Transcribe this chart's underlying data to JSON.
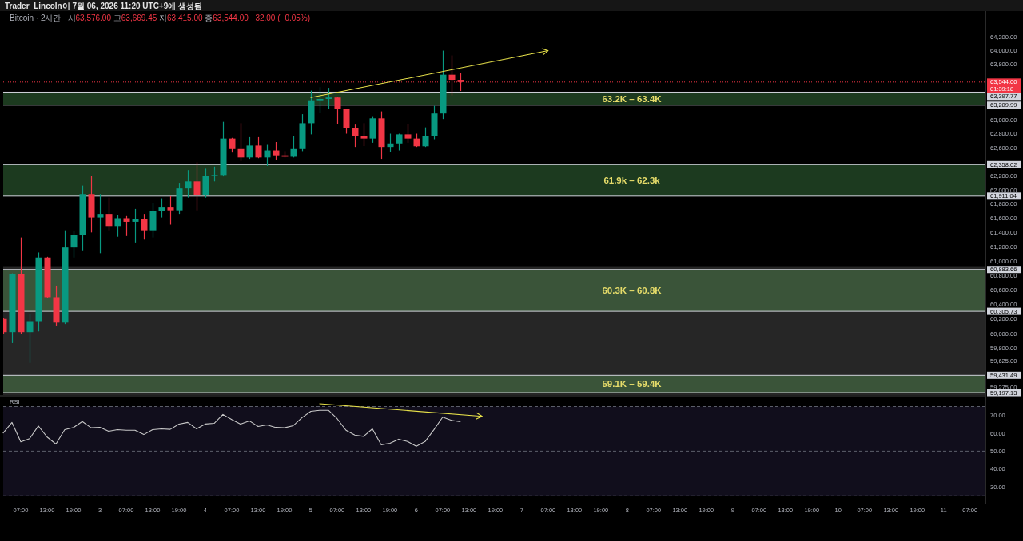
{
  "chart_data": [
    {
      "type": "candlestick",
      "title": "Bitcoin · 2시간",
      "subtitle": "시63,576.00 고63,669.45 저63,415.00 종63,544.00 −32.00 (−0.05%)",
      "annotations": [
        "Trader_Lincoln이 7월 06, 2026 11:20 UTC+9에 생성됨"
      ],
      "x": [
        "2026-07-02T03:00",
        "2026-07-02T05:00",
        "2026-07-02T07:00",
        "2026-07-02T09:00",
        "2026-07-02T11:00",
        "2026-07-02T13:00",
        "2026-07-02T15:00",
        "2026-07-02T17:00",
        "2026-07-02T19:00",
        "2026-07-02T21:00",
        "2026-07-02T23:00",
        "2026-07-03T01:00",
        "2026-07-03T03:00",
        "2026-07-03T05:00",
        "2026-07-03T07:00",
        "2026-07-03T09:00",
        "2026-07-03T11:00",
        "2026-07-03T13:00",
        "2026-07-03T15:00",
        "2026-07-03T17:00",
        "2026-07-03T19:00",
        "2026-07-03T21:00",
        "2026-07-03T23:00",
        "2026-07-04T01:00",
        "2026-07-04T03:00",
        "2026-07-04T05:00",
        "2026-07-04T07:00",
        "2026-07-04T09:00",
        "2026-07-04T11:00",
        "2026-07-04T13:00",
        "2026-07-04T15:00",
        "2026-07-04T17:00",
        "2026-07-04T19:00",
        "2026-07-04T21:00",
        "2026-07-04T23:00",
        "2026-07-05T01:00",
        "2026-07-05T03:00",
        "2026-07-05T05:00",
        "2026-07-05T07:00",
        "2026-07-05T09:00",
        "2026-07-05T11:00",
        "2026-07-05T13:00",
        "2026-07-05T15:00",
        "2026-07-05T17:00",
        "2026-07-05T19:00",
        "2026-07-05T21:00",
        "2026-07-05T23:00",
        "2026-07-06T01:00",
        "2026-07-06T03:00",
        "2026-07-06T05:00",
        "2026-07-06T07:00",
        "2026-07-06T09:00",
        "2026-07-06T11:00"
      ],
      "ohlc": [
        [
          60200,
          60210,
          60000,
          60020
        ],
        [
          60020,
          60830,
          59870,
          60820
        ],
        [
          60820,
          61330,
          59990,
          60020
        ],
        [
          60020,
          60270,
          59600,
          60170
        ],
        [
          60170,
          61120,
          60030,
          61050
        ],
        [
          61050,
          61060,
          60490,
          60500
        ],
        [
          60500,
          60660,
          60110,
          60150
        ],
        [
          60150,
          61430,
          60130,
          61190
        ],
        [
          61190,
          61420,
          61050,
          61360
        ],
        [
          61360,
          62060,
          61150,
          61940
        ],
        [
          61940,
          62200,
          61400,
          61610
        ],
        [
          61610,
          61940,
          61110,
          61660
        ],
        [
          61660,
          61890,
          61430,
          61490
        ],
        [
          61490,
          61650,
          61340,
          61600
        ],
        [
          61600,
          61630,
          61350,
          61550
        ],
        [
          61550,
          61730,
          61260,
          61590
        ],
        [
          61590,
          61660,
          61300,
          61430
        ],
        [
          61430,
          61820,
          61330,
          61700
        ],
        [
          61700,
          61880,
          61610,
          61750
        ],
        [
          61750,
          61910,
          61510,
          61710
        ],
        [
          61710,
          62100,
          61660,
          62020
        ],
        [
          62020,
          62280,
          61890,
          62120
        ],
        [
          62120,
          62390,
          61710,
          61920
        ],
        [
          61920,
          62300,
          61890,
          62200
        ],
        [
          62200,
          62330,
          62120,
          62210
        ],
        [
          62210,
          62970,
          62190,
          62730
        ],
        [
          62730,
          62740,
          62530,
          62580
        ],
        [
          62580,
          62950,
          62410,
          62460
        ],
        [
          62460,
          62750,
          62440,
          62630
        ],
        [
          62630,
          62750,
          62450,
          62460
        ],
        [
          62460,
          62640,
          62340,
          62560
        ],
        [
          62560,
          62680,
          62430,
          62490
        ],
        [
          62490,
          62550,
          62460,
          62470
        ],
        [
          62470,
          62770,
          62460,
          62580
        ],
        [
          62580,
          63080,
          62550,
          62950
        ],
        [
          62950,
          63420,
          62790,
          63280
        ],
        [
          63280,
          63470,
          63100,
          63300
        ],
        [
          63300,
          63460,
          63160,
          63320
        ],
        [
          63320,
          63330,
          62940,
          63150
        ],
        [
          63150,
          63160,
          62800,
          62880
        ],
        [
          62880,
          62930,
          62610,
          62770
        ],
        [
          62770,
          62950,
          62620,
          62730
        ],
        [
          62730,
          63040,
          62670,
          63020
        ],
        [
          63020,
          63120,
          62440,
          62610
        ],
        [
          62610,
          62800,
          62540,
          62660
        ],
        [
          62660,
          62800,
          62560,
          62790
        ],
        [
          62790,
          62940,
          62670,
          62730
        ],
        [
          62730,
          62800,
          62610,
          62620
        ],
        [
          62620,
          62890,
          62610,
          62770
        ],
        [
          62770,
          63200,
          62720,
          63090
        ],
        [
          63090,
          64000,
          63010,
          63650
        ],
        [
          63650,
          63930,
          63350,
          63576
        ],
        [
          63576,
          63669.45,
          63415,
          63544
        ]
      ],
      "colors": [
        "#f23645",
        "#089981",
        "#f23645",
        "#089981",
        "#089981",
        "#f23645",
        "#f23645",
        "#089981",
        "#089981",
        "#089981",
        "#f23645",
        "#089981",
        "#f23645",
        "#089981",
        "#f23645",
        "#089981",
        "#f23645",
        "#089981",
        "#089981",
        "#f23645",
        "#089981",
        "#089981",
        "#f23645",
        "#089981",
        "#089981",
        "#089981",
        "#f23645",
        "#f23645",
        "#089981",
        "#f23645",
        "#089981",
        "#f23645",
        "#f23645",
        "#089981",
        "#089981",
        "#089981",
        "#089981",
        "#089981",
        "#f23645",
        "#f23645",
        "#f23645",
        "#f23645",
        "#089981",
        "#f23645",
        "#089981",
        "#089981",
        "#f23645",
        "#f23645",
        "#089981",
        "#089981",
        "#089981",
        "#f23645",
        "#f23645"
      ],
      "series": [
        {
          "type": "line",
          "x": [
            "2026-07-05T01:00",
            "2026-07-07T07:00"
          ],
          "values": [
            63320,
            64000
          ],
          "color": "#e6e04a"
        }
      ],
      "xlim": [
        "2026-07-02T03:00",
        "2026-07-11T10:30"
      ],
      "ylim": [
        59165,
        64580
      ],
      "log": true,
      "tick_labels": "y",
      "yticks": [
        {
          "value": 64200,
          "label": "64,200.00"
        },
        {
          "value": 64000,
          "label": "64,000.00"
        },
        {
          "value": 63800,
          "label": "63,800.00"
        },
        {
          "value": 63000,
          "label": "63,000.00"
        },
        {
          "value": 62800,
          "label": "62,800.00"
        },
        {
          "value": 62600,
          "label": "62,600.00"
        },
        {
          "value": 62200,
          "label": "62,200.00"
        },
        {
          "value": 62000,
          "label": "62,000.00"
        },
        {
          "value": 61800,
          "label": "61,800.00"
        },
        {
          "value": 61600,
          "label": "61,600.00"
        },
        {
          "value": 61400,
          "label": "61,400.00"
        },
        {
          "value": 61200,
          "label": "61,200.00"
        },
        {
          "value": 61000,
          "label": "61,000.00"
        },
        {
          "value": 60800,
          "label": "60,800.00"
        },
        {
          "value": 60600,
          "label": "60,600.00"
        },
        {
          "value": 60400,
          "label": "60,400.00"
        },
        {
          "value": 60200,
          "label": "60,200.00"
        },
        {
          "value": 60000,
          "label": "60,000.00"
        },
        {
          "value": 59800,
          "label": "59,800.00"
        },
        {
          "value": 59625,
          "label": "59,625.00"
        },
        {
          "value": 59275,
          "label": "59,275.00"
        }
      ],
      "bands": [
        {
          "axis": "y",
          "from": 59165,
          "to": 60930,
          "color": "#262626"
        },
        {
          "axis": "y",
          "from": 63209.99,
          "to": 63397.77,
          "label": "63.2K – 63.4K",
          "color": "#1c3a1f"
        },
        {
          "axis": "y",
          "from": 61911.04,
          "to": 62358.02,
          "label": "61.9k – 62.3k",
          "color": "#1c3a1f"
        },
        {
          "axis": "y",
          "from": 60305.73,
          "to": 60883.66,
          "label": "60.3K – 60.8K",
          "color": "#3a5439"
        },
        {
          "axis": "y",
          "from": 59197.13,
          "to": 59431.49,
          "label": "59.1K – 59.4K",
          "color": "#3a5439"
        }
      ],
      "ref_lines": [
        {
          "axis": "y",
          "value": 63397.77,
          "label": "63,397.77",
          "color": "#d1d4dc"
        },
        {
          "axis": "y",
          "value": 63209.99,
          "label": "63,209.99",
          "color": "#d1d4dc"
        },
        {
          "axis": "y",
          "value": 62358.02,
          "label": "62,358.02",
          "color": "#d1d4dc"
        },
        {
          "axis": "y",
          "value": 61911.04,
          "label": "61,911.04",
          "color": "#d1d4dc"
        },
        {
          "axis": "y",
          "value": 60883.66,
          "label": "60,883.66",
          "color": "#d1d4dc"
        },
        {
          "axis": "y",
          "value": 60305.73,
          "label": "60,305.73",
          "color": "#d1d4dc"
        },
        {
          "axis": "y",
          "value": 59431.49,
          "label": "59,431.49",
          "color": "#d1d4dc"
        },
        {
          "axis": "y",
          "value": 59197.13,
          "label": "59,197.13",
          "color": "#d1d4dc"
        },
        {
          "axis": "y",
          "value": 63544,
          "label": "63,544.00\n01:39:18",
          "color": "#f23645",
          "line_style": "dotted"
        }
      ]
    },
    {
      "type": "line",
      "title": "RSI",
      "x": [
        "2026-07-02T03:00",
        "2026-07-02T05:00",
        "2026-07-02T07:00",
        "2026-07-02T09:00",
        "2026-07-02T11:00",
        "2026-07-02T13:00",
        "2026-07-02T15:00",
        "2026-07-02T17:00",
        "2026-07-02T19:00",
        "2026-07-02T21:00",
        "2026-07-02T23:00",
        "2026-07-03T01:00",
        "2026-07-03T03:00",
        "2026-07-03T05:00",
        "2026-07-03T07:00",
        "2026-07-03T09:00",
        "2026-07-03T11:00",
        "2026-07-03T13:00",
        "2026-07-03T15:00",
        "2026-07-03T17:00",
        "2026-07-03T19:00",
        "2026-07-03T21:00",
        "2026-07-03T23:00",
        "2026-07-04T01:00",
        "2026-07-04T03:00",
        "2026-07-04T05:00",
        "2026-07-04T07:00",
        "2026-07-04T09:00",
        "2026-07-04T11:00",
        "2026-07-04T13:00",
        "2026-07-04T15:00",
        "2026-07-04T17:00",
        "2026-07-04T19:00",
        "2026-07-04T21:00",
        "2026-07-04T23:00",
        "2026-07-05T01:00",
        "2026-07-05T03:00",
        "2026-07-05T05:00",
        "2026-07-05T07:00",
        "2026-07-05T09:00",
        "2026-07-05T11:00",
        "2026-07-05T13:00",
        "2026-07-05T15:00",
        "2026-07-05T17:00",
        "2026-07-05T19:00",
        "2026-07-05T21:00",
        "2026-07-05T23:00",
        "2026-07-06T01:00",
        "2026-07-06T03:00",
        "2026-07-06T05:00",
        "2026-07-06T07:00",
        "2026-07-06T09:00",
        "2026-07-06T11:00"
      ],
      "series": [
        {
          "values": [
            60.2,
            66.1,
            55.2,
            57.0,
            64.1,
            57.9,
            54.0,
            62.0,
            63.3,
            66.6,
            63.1,
            63.4,
            61.1,
            62.0,
            61.7,
            61.7,
            59.3,
            62.0,
            62.5,
            62.2,
            65.2,
            66.1,
            62.5,
            65.2,
            65.6,
            70.6,
            67.7,
            65.2,
            67.0,
            63.8,
            64.7,
            63.3,
            63.1,
            64.3,
            68.8,
            72.3,
            72.9,
            72.9,
            68.2,
            61.7,
            59.0,
            58.3,
            62.5,
            53.6,
            54.4,
            56.7,
            55.4,
            52.8,
            55.4,
            62.0,
            69.1,
            67.3,
            66.5
          ],
          "color": "#c8c8c8"
        },
        {
          "type": "line",
          "x": [
            "2026-07-05T03:00",
            "2026-07-06T16:00"
          ],
          "values": [
            76.6,
            69.5
          ],
          "color": "#e6e04a"
        }
      ],
      "xlim": [
        "2026-07-02T03:00",
        "2026-07-11T10:30"
      ],
      "ylim": [
        20.2,
        80.6
      ],
      "yticks": [
        {
          "value": 70,
          "label": "70.00"
        },
        {
          "value": 60,
          "label": "60.00"
        },
        {
          "value": 50,
          "label": "50.00"
        },
        {
          "value": 40,
          "label": "40.00"
        },
        {
          "value": 30,
          "label": "30.00"
        }
      ],
      "xticks": [
        {
          "value": "2026-07-02T07:00",
          "label": "07:00"
        },
        {
          "value": "2026-07-02T13:00",
          "label": "13:00"
        },
        {
          "value": "2026-07-02T19:00",
          "label": "19:00"
        },
        {
          "value": "2026-07-03T01:00",
          "label": "3"
        },
        {
          "value": "2026-07-03T07:00",
          "label": "07:00"
        },
        {
          "value": "2026-07-03T13:00",
          "label": "13:00"
        },
        {
          "value": "2026-07-03T19:00",
          "label": "19:00"
        },
        {
          "value": "2026-07-04T01:00",
          "label": "4"
        },
        {
          "value": "2026-07-04T07:00",
          "label": "07:00"
        },
        {
          "value": "2026-07-04T13:00",
          "label": "13:00"
        },
        {
          "value": "2026-07-04T19:00",
          "label": "19:00"
        },
        {
          "value": "2026-07-05T01:00",
          "label": "5"
        },
        {
          "value": "2026-07-05T07:00",
          "label": "07:00"
        },
        {
          "value": "2026-07-05T13:00",
          "label": "13:00"
        },
        {
          "value": "2026-07-05T19:00",
          "label": "19:00"
        },
        {
          "value": "2026-07-06T01:00",
          "label": "6"
        },
        {
          "value": "2026-07-06T07:00",
          "label": "07:00"
        },
        {
          "value": "2026-07-06T13:00",
          "label": "13:00"
        },
        {
          "value": "2026-07-06T19:00",
          "label": "19:00"
        },
        {
          "value": "2026-07-07T01:00",
          "label": "7"
        },
        {
          "value": "2026-07-07T07:00",
          "label": "07:00"
        },
        {
          "value": "2026-07-07T13:00",
          "label": "13:00"
        },
        {
          "value": "2026-07-07T19:00",
          "label": "19:00"
        },
        {
          "value": "2026-07-08T01:00",
          "label": "8"
        },
        {
          "value": "2026-07-08T07:00",
          "label": "07:00"
        },
        {
          "value": "2026-07-08T13:00",
          "label": "13:00"
        },
        {
          "value": "2026-07-08T19:00",
          "label": "19:00"
        },
        {
          "value": "2026-07-09T01:00",
          "label": "9"
        },
        {
          "value": "2026-07-09T07:00",
          "label": "07:00"
        },
        {
          "value": "2026-07-09T13:00",
          "label": "13:00"
        },
        {
          "value": "2026-07-09T19:00",
          "label": "19:00"
        },
        {
          "value": "2026-07-10T01:00",
          "label": "10"
        },
        {
          "value": "2026-07-10T07:00",
          "label": "07:00"
        },
        {
          "value": "2026-07-10T13:00",
          "label": "13:00"
        },
        {
          "value": "2026-07-10T19:00",
          "label": "19:00"
        },
        {
          "value": "2026-07-11T01:00",
          "label": "11"
        },
        {
          "value": "2026-07-11T07:00",
          "label": "07:00"
        }
      ],
      "bands": [
        {
          "axis": "y",
          "from": 25,
          "to": 75,
          "color": "#110e1c"
        }
      ],
      "ref_lines": [
        {
          "axis": "y",
          "value": 75,
          "color": "#5d606b",
          "line_style": "dashed"
        },
        {
          "axis": "y",
          "value": 50,
          "color": "#5d606b",
          "line_style": "dashed"
        },
        {
          "axis": "y",
          "value": 25,
          "color": "#5d606b",
          "line_style": "dashed"
        }
      ]
    }
  ]
}
